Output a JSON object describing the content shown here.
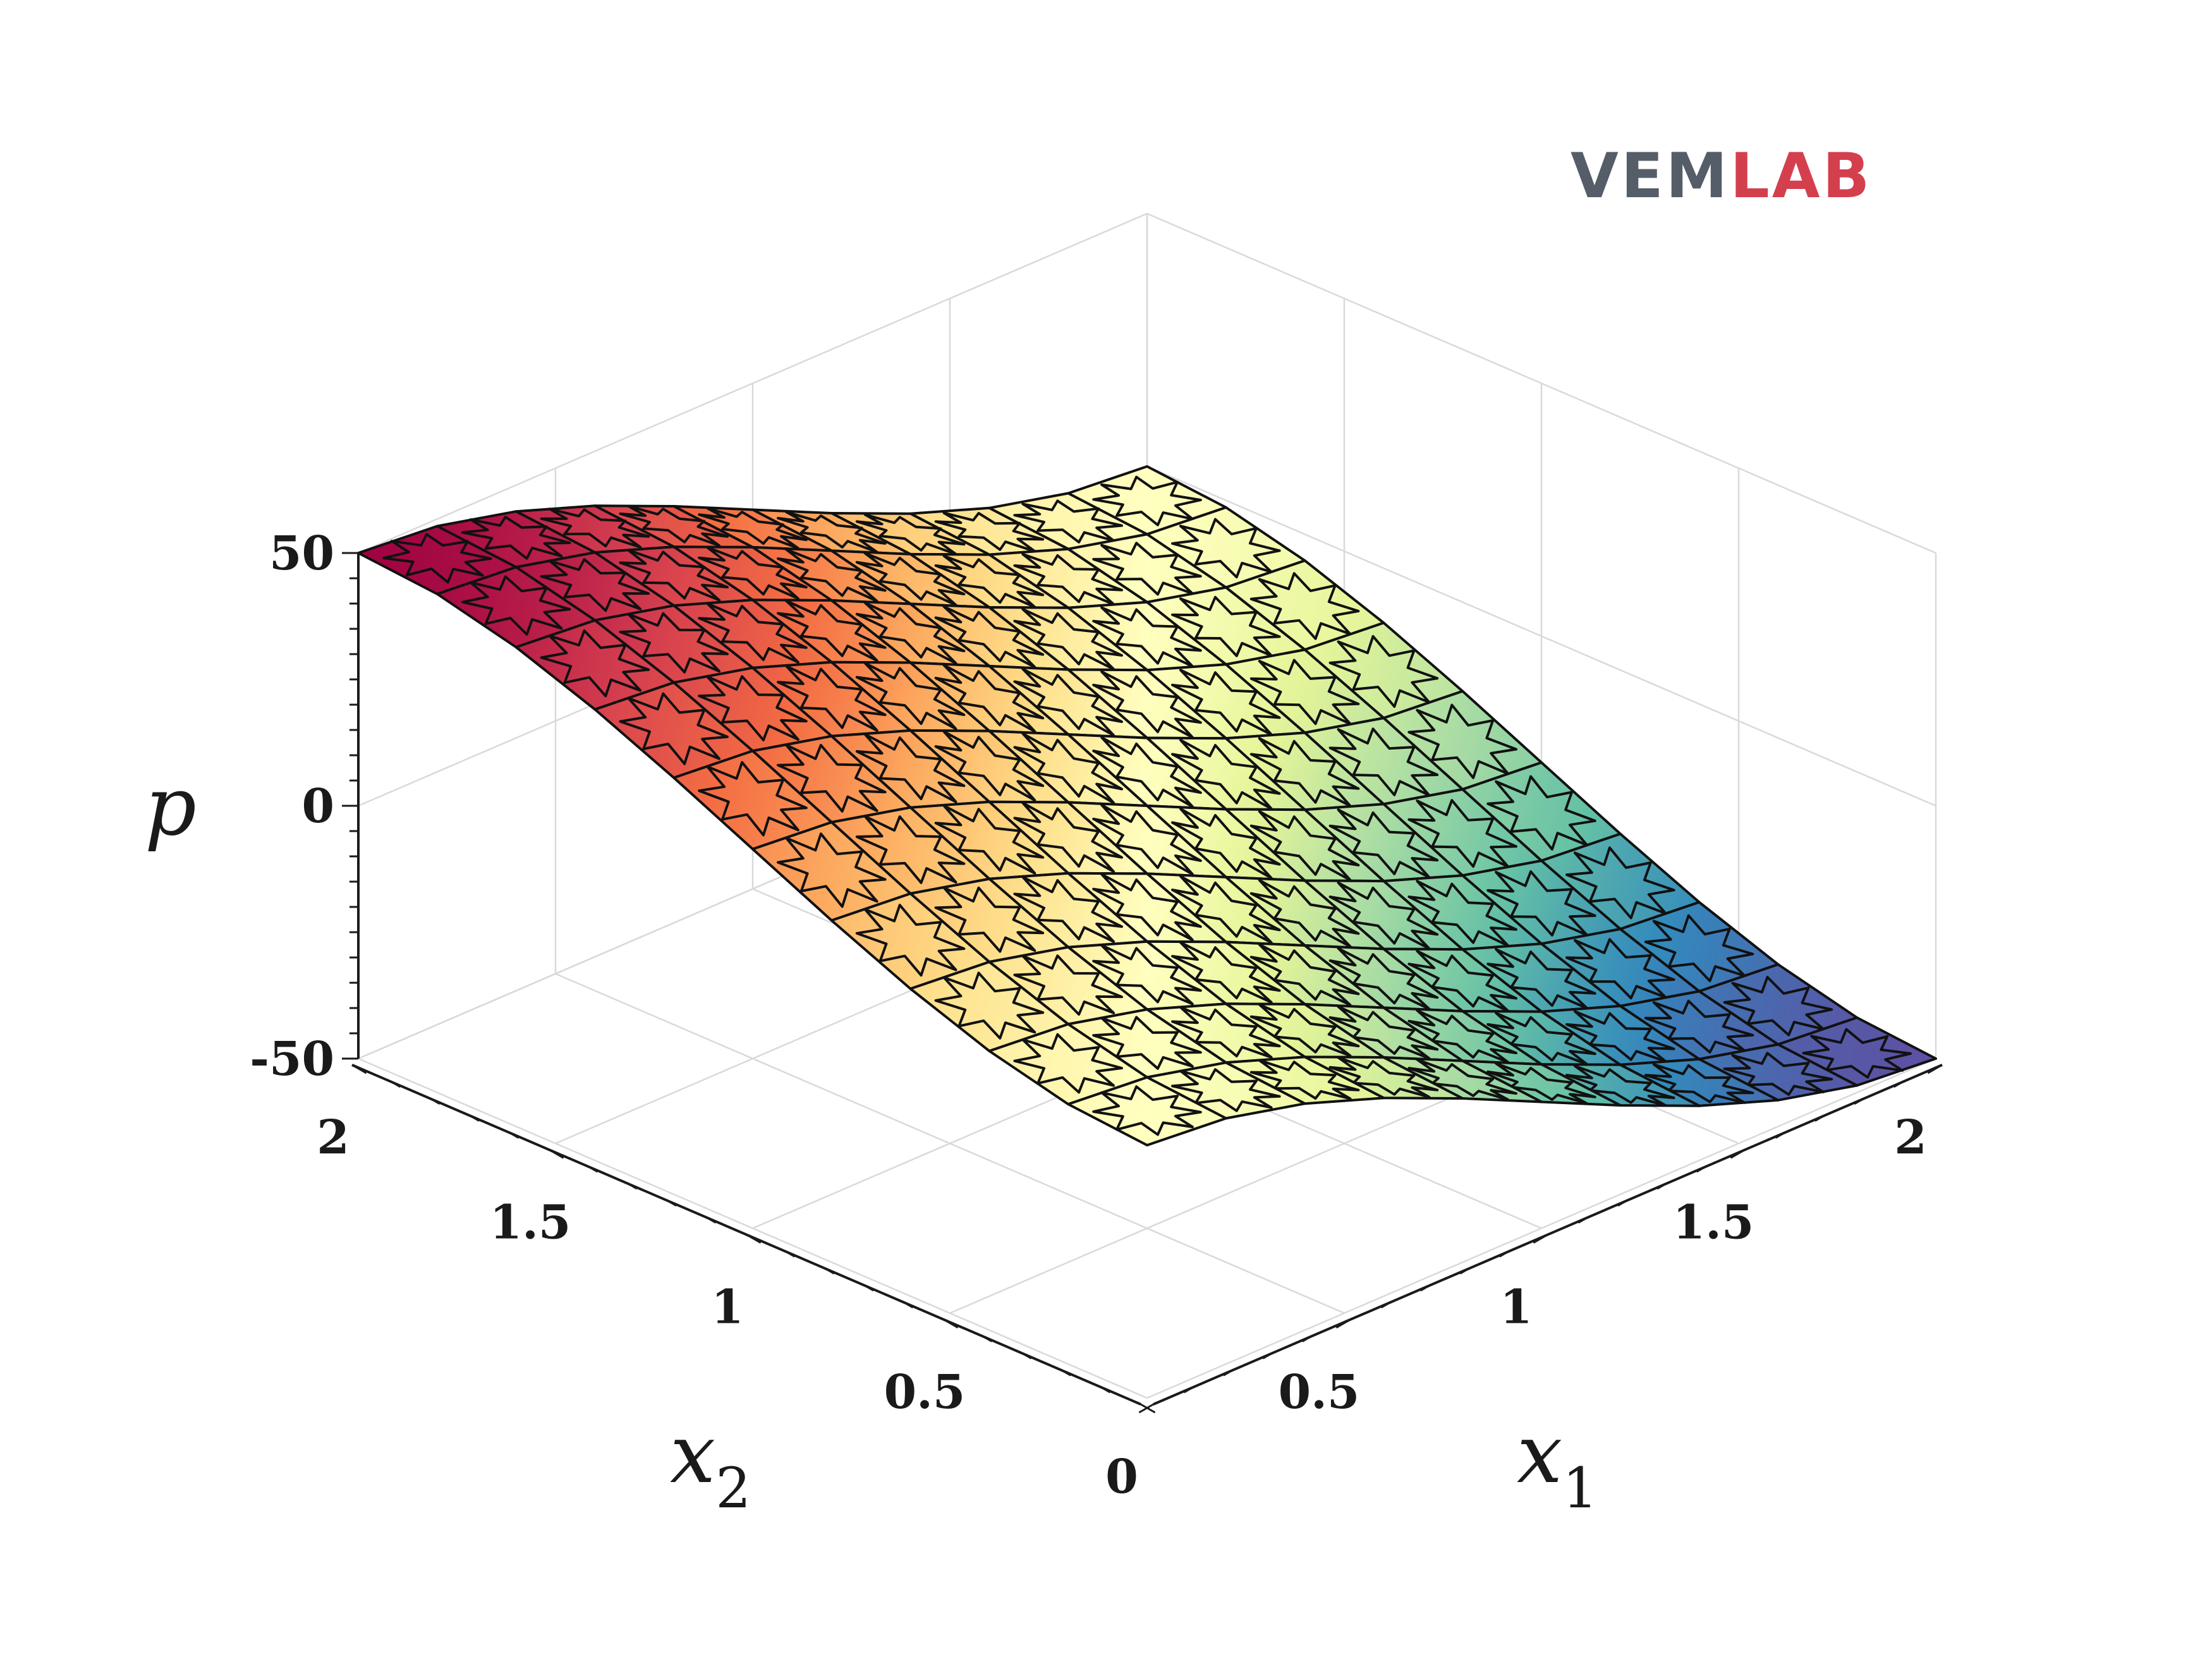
{
  "logo": {
    "part1": "VEM",
    "part2": "LAB",
    "color1": "#545d68",
    "color2": "#d43f4e"
  },
  "chart_data": {
    "type": "surface",
    "title": "",
    "xlabel": "x",
    "xlabel_sub": "1",
    "ylabel": "x",
    "ylabel_sub": "2",
    "zlabel": "p",
    "xlim": [
      0,
      2
    ],
    "ylim": [
      0,
      2
    ],
    "zlim": [
      -50,
      50
    ],
    "x_ticks": [
      "0",
      "0.5",
      "1",
      "1.5",
      "2"
    ],
    "y_ticks": [
      "0",
      "0.5",
      "1",
      "1.5",
      "2"
    ],
    "z_ticks": [
      "-50",
      "0",
      "50"
    ],
    "grid": true,
    "colormap": "spectral",
    "colormap_colors": [
      "#5e4fa2",
      "#3288bd",
      "#66c2a5",
      "#abdda4",
      "#e6f598",
      "#ffffbf",
      "#fee08b",
      "#fdae61",
      "#f46d43",
      "#d53e4f",
      "#9e0142"
    ],
    "mesh": "10x10 star-shaped polygonal cells",
    "z_formula": "p = 12.5*(x1^3 - x2^3) - 37.5*(x1^2 - x2^2)",
    "z_sample_grid": {
      "x1": [
        0,
        0.5,
        1,
        1.5,
        2
      ],
      "x2": [
        0,
        0.5,
        1,
        1.5,
        2
      ],
      "p_rows_by_x2": [
        [
          0,
          -7.8,
          -25,
          -42.2,
          -50
        ],
        [
          7.8,
          0,
          -17.2,
          -34.4,
          -42.2
        ],
        [
          25,
          17.2,
          0,
          -17.2,
          -25
        ],
        [
          42.2,
          34.4,
          17.2,
          0,
          -7.8
        ],
        [
          50,
          42.2,
          25,
          7.8,
          0
        ]
      ]
    }
  }
}
